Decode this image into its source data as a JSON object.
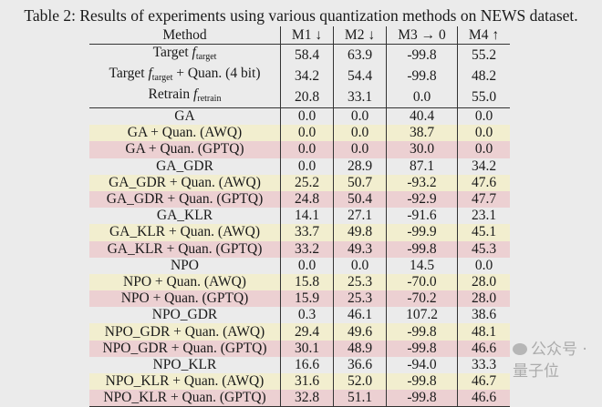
{
  "caption": "Table 2: Results of experiments using various quantization methods on NEWS dataset.",
  "headers": [
    "Method",
    "M1 ↓",
    "M2 ↓",
    "M3 → 0",
    "M4 ↑"
  ],
  "baseline_rows": [
    {
      "prefix": "Target ",
      "f": "f",
      "sub": "target",
      "suffix": "",
      "values": [
        "58.4",
        "63.9",
        "-99.8",
        "55.2"
      ]
    },
    {
      "prefix": "Target ",
      "f": "f",
      "sub": "target",
      "suffix": " + Quan. (4 bit)",
      "values": [
        "34.2",
        "54.4",
        "-99.8",
        "48.2"
      ]
    },
    {
      "prefix": "Retrain ",
      "f": "f",
      "sub": "retrain",
      "suffix": "",
      "values": [
        "20.8",
        "33.1",
        "0.0",
        "55.0"
      ]
    }
  ],
  "rows": [
    {
      "method": "GA",
      "kind": "base",
      "values": [
        "0.0",
        "0.0",
        "40.4",
        "0.0"
      ]
    },
    {
      "method": "GA + Quan. (AWQ)",
      "kind": "awq",
      "values": [
        "0.0",
        "0.0",
        "38.7",
        "0.0"
      ]
    },
    {
      "method": "GA + Quan. (GPTQ)",
      "kind": "gptq",
      "values": [
        "0.0",
        "0.0",
        "30.0",
        "0.0"
      ]
    },
    {
      "method": "GA_GDR",
      "kind": "base",
      "values": [
        "0.0",
        "28.9",
        "87.1",
        "34.2"
      ]
    },
    {
      "method": "GA_GDR + Quan. (AWQ)",
      "kind": "awq",
      "values": [
        "25.2",
        "50.7",
        "-93.2",
        "47.6"
      ]
    },
    {
      "method": "GA_GDR + Quan. (GPTQ)",
      "kind": "gptq",
      "values": [
        "24.8",
        "50.4",
        "-92.9",
        "47.7"
      ]
    },
    {
      "method": "GA_KLR",
      "kind": "base",
      "values": [
        "14.1",
        "27.1",
        "-91.6",
        "23.1"
      ]
    },
    {
      "method": "GA_KLR + Quan. (AWQ)",
      "kind": "awq",
      "values": [
        "33.7",
        "49.8",
        "-99.9",
        "45.1"
      ]
    },
    {
      "method": "GA_KLR + Quan. (GPTQ)",
      "kind": "gptq",
      "values": [
        "33.2",
        "49.3",
        "-99.8",
        "45.3"
      ]
    },
    {
      "method": "NPO",
      "kind": "base",
      "values": [
        "0.0",
        "0.0",
        "14.5",
        "0.0"
      ]
    },
    {
      "method": "NPO + Quan. (AWQ)",
      "kind": "awq",
      "values": [
        "15.8",
        "25.3",
        "-70.0",
        "28.0"
      ]
    },
    {
      "method": "NPO + Quan. (GPTQ)",
      "kind": "gptq",
      "values": [
        "15.9",
        "25.3",
        "-70.2",
        "28.0"
      ]
    },
    {
      "method": "NPO_GDR",
      "kind": "base",
      "values": [
        "0.3",
        "46.1",
        "107.2",
        "38.6"
      ]
    },
    {
      "method": "NPO_GDR + Quan. (AWQ)",
      "kind": "awq",
      "values": [
        "29.4",
        "49.6",
        "-99.8",
        "48.1"
      ]
    },
    {
      "method": "NPO_GDR + Quan. (GPTQ)",
      "kind": "gptq",
      "values": [
        "30.1",
        "48.9",
        "-99.8",
        "46.6"
      ]
    },
    {
      "method": "NPO_KLR",
      "kind": "base",
      "values": [
        "16.6",
        "36.6",
        "-94.0",
        "33.3"
      ]
    },
    {
      "method": "NPO_KLR + Quan. (AWQ)",
      "kind": "awq",
      "values": [
        "31.6",
        "52.0",
        "-99.8",
        "46.7"
      ]
    },
    {
      "method": "NPO_KLR + Quan. (GPTQ)",
      "kind": "gptq",
      "values": [
        "32.8",
        "51.1",
        "-99.8",
        "46.6"
      ]
    }
  ],
  "colors": {
    "awq": "#f2eecf",
    "gptq": "#ecd0d2",
    "background": "#ebebeb"
  },
  "watermark": "公众号 · 量子位"
}
